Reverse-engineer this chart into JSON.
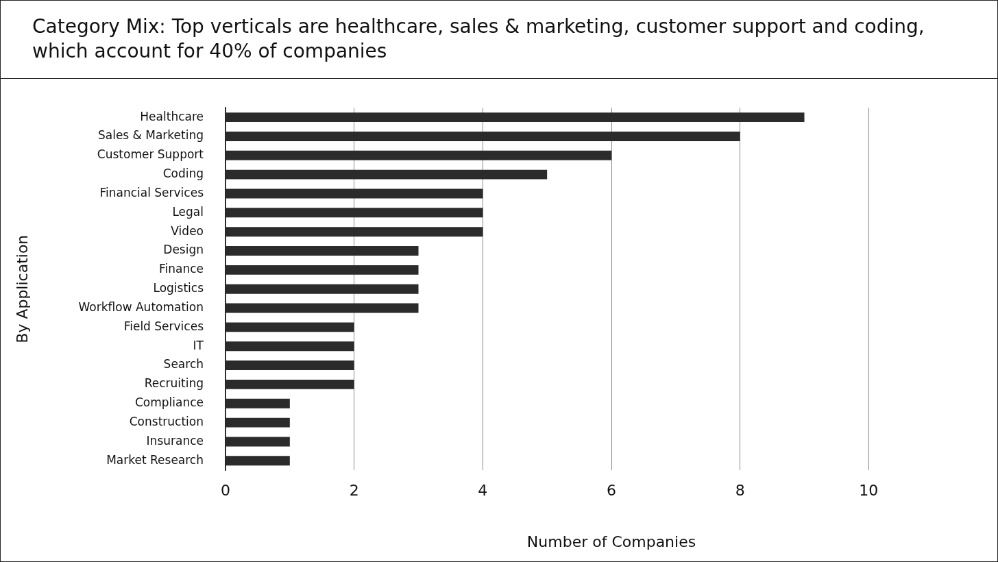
{
  "chart_data": {
    "type": "bar",
    "orientation": "horizontal",
    "title": "Category Mix: Top verticals are healthcare, sales & marketing, customer support and coding, which account for 40% of companies",
    "xlabel": "Number of Companies",
    "ylabel": "By Application",
    "categories": [
      "Healthcare",
      "Sales & Marketing",
      "Customer Support",
      "Coding",
      "Financial Services",
      "Legal",
      "Video",
      "Design",
      "Finance",
      "Logistics",
      "Workflow Automation",
      "Field Services",
      "IT",
      "Search",
      "Recruiting",
      "Compliance",
      "Construction",
      "Insurance",
      "Market Research"
    ],
    "values": [
      9,
      8,
      6,
      5,
      4,
      4,
      4,
      3,
      3,
      3,
      3,
      2,
      2,
      2,
      2,
      1,
      1,
      1,
      1
    ],
    "color": "#2b2b2b",
    "xlim": [
      0,
      12
    ],
    "xticks": [
      0,
      2,
      4,
      6,
      8,
      10
    ],
    "grid": "x"
  }
}
